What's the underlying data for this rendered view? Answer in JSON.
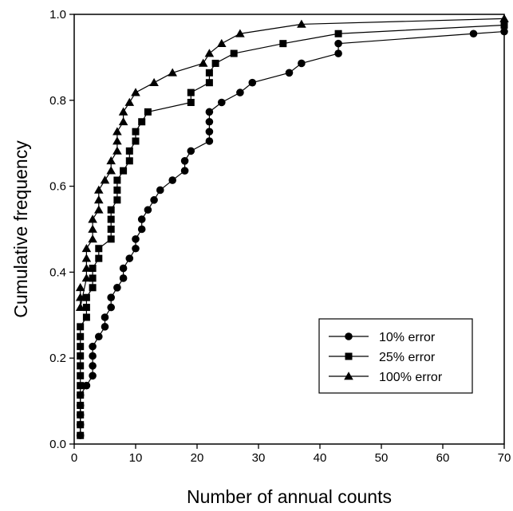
{
  "chart_data": {
    "type": "line",
    "xlabel": "Number of annual counts",
    "ylabel": "Cumulative frequency",
    "xlim": [
      0,
      70
    ],
    "ylim": [
      0.0,
      1.0
    ],
    "x_ticks": [
      0,
      10,
      20,
      30,
      40,
      50,
      60,
      70
    ],
    "y_ticks": [
      0.0,
      0.2,
      0.4,
      0.6,
      0.8,
      1.0
    ],
    "x_tick_labels": [
      "0",
      "10",
      "20",
      "30",
      "40",
      "50",
      "60",
      "70"
    ],
    "y_tick_labels": [
      "0.0",
      "0.2",
      "0.4",
      "0.6",
      "0.8",
      "1.0"
    ],
    "grid": false,
    "legend_position": "bottom-right",
    "series": [
      {
        "name": "10% error",
        "marker": "circle",
        "points": [
          [
            1,
            0.02
          ],
          [
            1,
            0.045
          ],
          [
            1,
            0.068
          ],
          [
            1,
            0.09
          ],
          [
            1,
            0.114
          ],
          [
            2,
            0.136
          ],
          [
            3,
            0.159
          ],
          [
            3,
            0.182
          ],
          [
            3,
            0.205
          ],
          [
            3,
            0.227
          ],
          [
            4,
            0.25
          ],
          [
            5,
            0.273
          ],
          [
            5,
            0.295
          ],
          [
            6,
            0.318
          ],
          [
            6,
            0.341
          ],
          [
            7,
            0.364
          ],
          [
            8,
            0.386
          ],
          [
            8,
            0.409
          ],
          [
            9,
            0.432
          ],
          [
            10,
            0.455
          ],
          [
            10,
            0.477
          ],
          [
            11,
            0.5
          ],
          [
            11,
            0.523
          ],
          [
            12,
            0.545
          ],
          [
            13,
            0.568
          ],
          [
            14,
            0.591
          ],
          [
            16,
            0.614
          ],
          [
            18,
            0.636
          ],
          [
            18,
            0.659
          ],
          [
            19,
            0.682
          ],
          [
            22,
            0.705
          ],
          [
            22,
            0.727
          ],
          [
            22,
            0.75
          ],
          [
            22,
            0.773
          ],
          [
            24,
            0.795
          ],
          [
            27,
            0.818
          ],
          [
            29,
            0.841
          ],
          [
            35,
            0.864
          ],
          [
            37,
            0.886
          ],
          [
            43,
            0.909
          ],
          [
            43,
            0.932
          ],
          [
            65,
            0.955
          ],
          [
            70,
            0.96
          ]
        ]
      },
      {
        "name": "25% error",
        "marker": "square",
        "points": [
          [
            1,
            0.02
          ],
          [
            1,
            0.045
          ],
          [
            1,
            0.068
          ],
          [
            1,
            0.09
          ],
          [
            1,
            0.114
          ],
          [
            1,
            0.136
          ],
          [
            1,
            0.159
          ],
          [
            1,
            0.182
          ],
          [
            1,
            0.205
          ],
          [
            1,
            0.227
          ],
          [
            1,
            0.25
          ],
          [
            1,
            0.273
          ],
          [
            2,
            0.295
          ],
          [
            2,
            0.318
          ],
          [
            2,
            0.341
          ],
          [
            3,
            0.364
          ],
          [
            3,
            0.386
          ],
          [
            3,
            0.409
          ],
          [
            4,
            0.432
          ],
          [
            4,
            0.455
          ],
          [
            6,
            0.477
          ],
          [
            6,
            0.5
          ],
          [
            6,
            0.523
          ],
          [
            6,
            0.545
          ],
          [
            7,
            0.568
          ],
          [
            7,
            0.591
          ],
          [
            7,
            0.614
          ],
          [
            8,
            0.636
          ],
          [
            9,
            0.659
          ],
          [
            9,
            0.682
          ],
          [
            10,
            0.705
          ],
          [
            10,
            0.727
          ],
          [
            11,
            0.75
          ],
          [
            12,
            0.773
          ],
          [
            19,
            0.795
          ],
          [
            19,
            0.818
          ],
          [
            22,
            0.841
          ],
          [
            22,
            0.864
          ],
          [
            23,
            0.886
          ],
          [
            26,
            0.909
          ],
          [
            34,
            0.932
          ],
          [
            43,
            0.955
          ],
          [
            70,
            0.975
          ]
        ]
      },
      {
        "name": "100% error",
        "marker": "triangle",
        "points": [
          [
            1,
            0.364
          ],
          [
            1,
            0.341
          ],
          [
            1,
            0.318
          ],
          [
            2,
            0.386
          ],
          [
            2,
            0.409
          ],
          [
            2,
            0.432
          ],
          [
            2,
            0.455
          ],
          [
            3,
            0.477
          ],
          [
            3,
            0.5
          ],
          [
            3,
            0.523
          ],
          [
            4,
            0.545
          ],
          [
            4,
            0.568
          ],
          [
            4,
            0.591
          ],
          [
            5,
            0.614
          ],
          [
            6,
            0.636
          ],
          [
            6,
            0.659
          ],
          [
            7,
            0.682
          ],
          [
            7,
            0.705
          ],
          [
            7,
            0.727
          ],
          [
            8,
            0.75
          ],
          [
            8,
            0.773
          ],
          [
            9,
            0.795
          ],
          [
            10,
            0.818
          ],
          [
            13,
            0.841
          ],
          [
            16,
            0.864
          ],
          [
            21,
            0.886
          ],
          [
            22,
            0.909
          ],
          [
            24,
            0.932
          ],
          [
            27,
            0.955
          ],
          [
            37,
            0.977
          ],
          [
            70,
            0.99
          ]
        ]
      }
    ]
  }
}
